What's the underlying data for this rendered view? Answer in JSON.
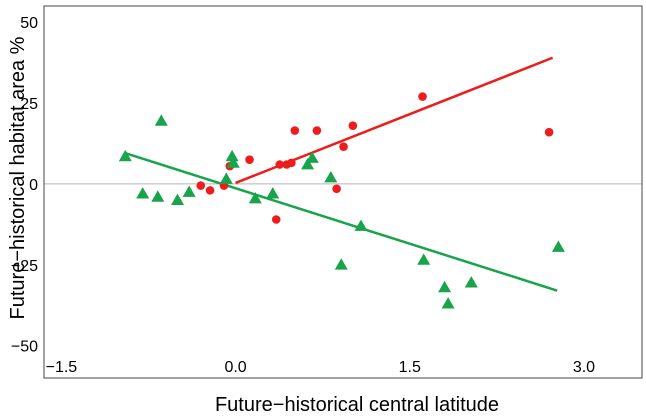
{
  "chart_data": {
    "type": "scatter",
    "title": "",
    "xlabel": "Future−historical central latitude",
    "ylabel": "Future−historical habitat area %",
    "xlim": [
      -1.65,
      3.5
    ],
    "ylim": [
      -60,
      55
    ],
    "x_ticks": [
      -1.5,
      0.0,
      1.5,
      3.0
    ],
    "x_tick_labels": [
      "−1.5",
      "0.0",
      "1.5",
      "3.0"
    ],
    "y_ticks": [
      50,
      25,
      0,
      -25,
      -50
    ],
    "y_tick_labels": [
      "50",
      "25",
      "0",
      "−25",
      "−50"
    ],
    "zero_line": true,
    "grid": false,
    "legend": "none",
    "series": [
      {
        "marker": "circle",
        "color": "#ee1c1c",
        "points": [
          [
            -0.3,
            -0.5
          ],
          [
            -0.22,
            -2.0
          ],
          [
            -0.1,
            -0.5
          ],
          [
            -0.05,
            5.5
          ],
          [
            0.12,
            7.5
          ],
          [
            0.35,
            -11.0
          ],
          [
            0.38,
            6.0
          ],
          [
            0.44,
            6.0
          ],
          [
            0.48,
            6.5
          ],
          [
            0.51,
            16.5
          ],
          [
            0.7,
            16.5
          ],
          [
            0.87,
            -1.5
          ],
          [
            0.93,
            11.5
          ],
          [
            1.01,
            18.0
          ],
          [
            1.61,
            27.0
          ],
          [
            2.7,
            16.0
          ]
        ],
        "trend": [
          [
            0.0,
            0.3
          ],
          [
            2.73,
            39.0
          ]
        ]
      },
      {
        "marker": "triangle",
        "color": "#19a34b",
        "points": [
          [
            -0.95,
            8.5
          ],
          [
            -0.8,
            -3.0
          ],
          [
            -0.67,
            -4.0
          ],
          [
            -0.64,
            19.5
          ],
          [
            -0.5,
            -5.0
          ],
          [
            -0.4,
            -2.5
          ],
          [
            -0.08,
            1.5
          ],
          [
            -0.03,
            8.5
          ],
          [
            -0.02,
            6.5
          ],
          [
            0.17,
            -4.5
          ],
          [
            0.32,
            -3.0
          ],
          [
            0.62,
            6.0
          ],
          [
            0.66,
            8.0
          ],
          [
            0.82,
            2.0
          ],
          [
            0.91,
            -25.0
          ],
          [
            1.08,
            -13.0
          ],
          [
            1.62,
            -23.5
          ],
          [
            1.8,
            -32.0
          ],
          [
            1.83,
            -37.0
          ],
          [
            2.03,
            -30.5
          ],
          [
            2.78,
            -19.5
          ]
        ],
        "trend": [
          [
            -0.95,
            9.5
          ],
          [
            2.77,
            -33.0
          ]
        ]
      }
    ]
  },
  "colors": {
    "red_series": "#ee1c1c",
    "green_series": "#19a34b",
    "zero_line": "#b4b4b4",
    "frame": "#444444"
  }
}
